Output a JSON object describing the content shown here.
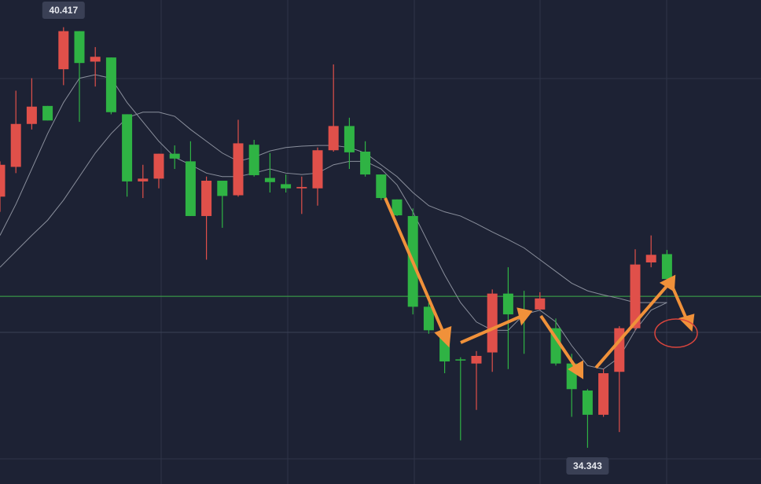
{
  "chart_data": {
    "type": "candlestick",
    "ylim": [
      33.82,
      40.81
    ],
    "up_color": "#e0504a",
    "down_color": "#2fb344",
    "ma_color": "#8a8f9c",
    "price_line_color": "#3fae4a",
    "candles": [
      [
        37.97,
        38.48,
        37.75,
        38.43
      ],
      [
        38.4,
        39.5,
        38.31,
        39.02
      ],
      [
        39.02,
        39.68,
        38.94,
        39.27
      ],
      [
        39.28,
        39.28,
        39.07,
        39.07
      ],
      [
        39.81,
        40.417,
        39.58,
        40.36
      ],
      [
        40.36,
        40.36,
        39.05,
        39.9
      ],
      [
        39.92,
        40.13,
        39.56,
        39.99
      ],
      [
        39.98,
        39.98,
        39.16,
        39.19
      ],
      [
        39.16,
        39.16,
        37.97,
        38.19
      ],
      [
        38.19,
        38.43,
        37.95,
        38.23
      ],
      [
        38.23,
        38.59,
        38.09,
        38.59
      ],
      [
        38.59,
        38.71,
        38.37,
        38.52
      ],
      [
        38.48,
        38.77,
        37.69,
        37.69
      ],
      [
        37.69,
        38.26,
        37.06,
        38.2
      ],
      [
        38.2,
        38.2,
        37.52,
        37.98
      ],
      [
        37.99,
        39.08,
        37.97,
        38.74
      ],
      [
        38.72,
        38.79,
        38.26,
        38.28
      ],
      [
        38.24,
        38.6,
        38.03,
        38.18
      ],
      [
        38.15,
        38.29,
        38.03,
        38.09
      ],
      [
        38.09,
        38.26,
        37.72,
        38.11
      ],
      [
        38.09,
        38.68,
        37.84,
        38.64
      ],
      [
        38.64,
        39.88,
        38.62,
        38.99
      ],
      [
        38.99,
        39.11,
        38.37,
        38.61
      ],
      [
        38.62,
        38.77,
        38.26,
        38.29
      ],
      [
        38.29,
        38.29,
        37.92,
        37.95
      ],
      [
        37.93,
        37.93,
        37.69,
        37.7
      ],
      [
        37.69,
        37.8,
        36.27,
        36.38
      ],
      [
        36.38,
        36.44,
        35.99,
        36.04
      ],
      [
        36.04,
        36.04,
        35.42,
        35.59
      ],
      [
        35.62,
        35.65,
        34.45,
        35.61
      ],
      [
        35.56,
        35.74,
        34.89,
        35.67
      ],
      [
        35.72,
        36.63,
        35.44,
        36.57
      ],
      [
        36.57,
        36.95,
        35.48,
        36.27
      ],
      [
        36.29,
        36.61,
        35.7,
        36.25
      ],
      [
        36.34,
        36.59,
        36.33,
        36.5
      ],
      [
        36.07,
        36.21,
        35.53,
        35.56
      ],
      [
        35.56,
        35.7,
        34.79,
        35.19
      ],
      [
        35.17,
        35.19,
        34.343,
        34.82
      ],
      [
        34.82,
        35.48,
        34.79,
        35.42
      ],
      [
        35.44,
        36.1,
        34.57,
        36.07
      ],
      [
        36.07,
        37.21,
        36.04,
        36.99
      ],
      [
        37.02,
        37.41,
        36.95,
        37.13
      ],
      [
        37.14,
        37.2,
        36.72,
        36.78
      ]
    ],
    "moving_averages": [
      [
        37.41,
        37.86,
        38.37,
        38.88,
        39.33,
        39.68,
        39.73,
        39.68,
        39.33,
        39.05,
        38.77,
        38.54,
        38.43,
        38.31,
        38.26,
        38.26,
        38.31,
        38.37,
        38.31,
        38.29,
        38.31,
        38.43,
        38.48,
        38.48,
        38.37,
        38.14,
        37.75,
        37.29,
        36.84,
        36.44,
        36.16,
        36.04,
        36.04,
        36.27,
        36.33,
        36.16,
        35.82,
        35.53,
        35.48,
        35.65,
        36.04,
        36.33,
        36.44
      ],
      [
        36.95,
        37.18,
        37.41,
        37.63,
        37.92,
        38.26,
        38.6,
        38.88,
        39.11,
        39.19,
        39.19,
        39.13,
        38.94,
        38.77,
        38.6,
        38.48,
        38.54,
        38.63,
        38.68,
        38.7,
        38.71,
        38.71,
        38.68,
        38.6,
        38.43,
        38.26,
        38.03,
        37.84,
        37.75,
        37.69,
        37.58,
        37.46,
        37.35,
        37.23,
        37.06,
        36.89,
        36.72,
        36.61,
        36.55,
        36.5,
        36.44,
        36.44,
        36.44
      ]
    ],
    "current_price": 36.53,
    "max_label": 40.417,
    "min_label": 34.343
  }
}
